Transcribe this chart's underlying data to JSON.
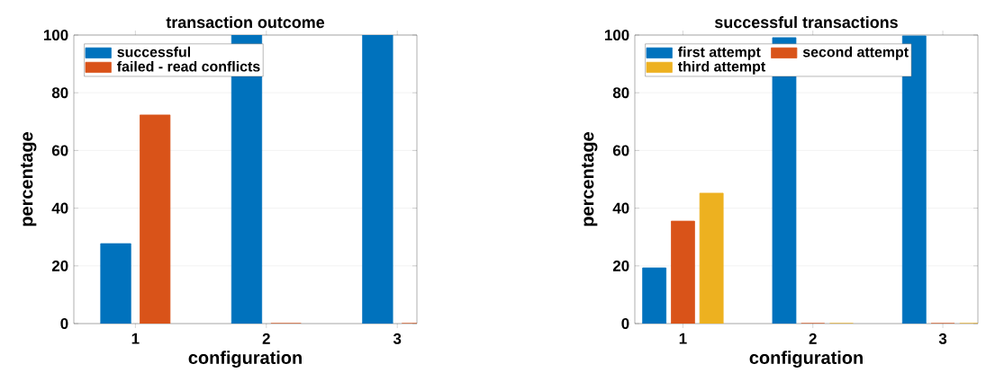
{
  "chart_data": [
    {
      "type": "bar",
      "title": "transaction outcome",
      "xlabel": "configuration",
      "ylabel": "percentage",
      "categories": [
        "1",
        "2",
        "3"
      ],
      "series": [
        {
          "name": "successful",
          "color": "#0072bd",
          "values": [
            27.7,
            100,
            100
          ]
        },
        {
          "name": "failed - read conflicts",
          "color": "#d95319",
          "values": [
            72.3,
            0,
            0
          ]
        }
      ],
      "ylim": [
        0,
        100
      ],
      "yticks": [
        0,
        20,
        40,
        60,
        80,
        100
      ],
      "grid": "y",
      "legend": "top left"
    },
    {
      "type": "bar",
      "title": "successful transactions",
      "xlabel": "configuration",
      "ylabel": "percentage",
      "categories": [
        "1",
        "2",
        "3"
      ],
      "series": [
        {
          "name": "first attempt",
          "color": "#0072bd",
          "values": [
            19.3,
            99.1,
            99.7
          ]
        },
        {
          "name": "second attempt",
          "color": "#d95319",
          "values": [
            35.5,
            0,
            0
          ]
        },
        {
          "name": "third attempt",
          "color": "#edb120",
          "values": [
            45.2,
            0,
            0
          ]
        }
      ],
      "ylim": [
        0,
        100
      ],
      "yticks": [
        0,
        20,
        40,
        60,
        80,
        100
      ],
      "grid": "y",
      "legend": "top left"
    }
  ]
}
